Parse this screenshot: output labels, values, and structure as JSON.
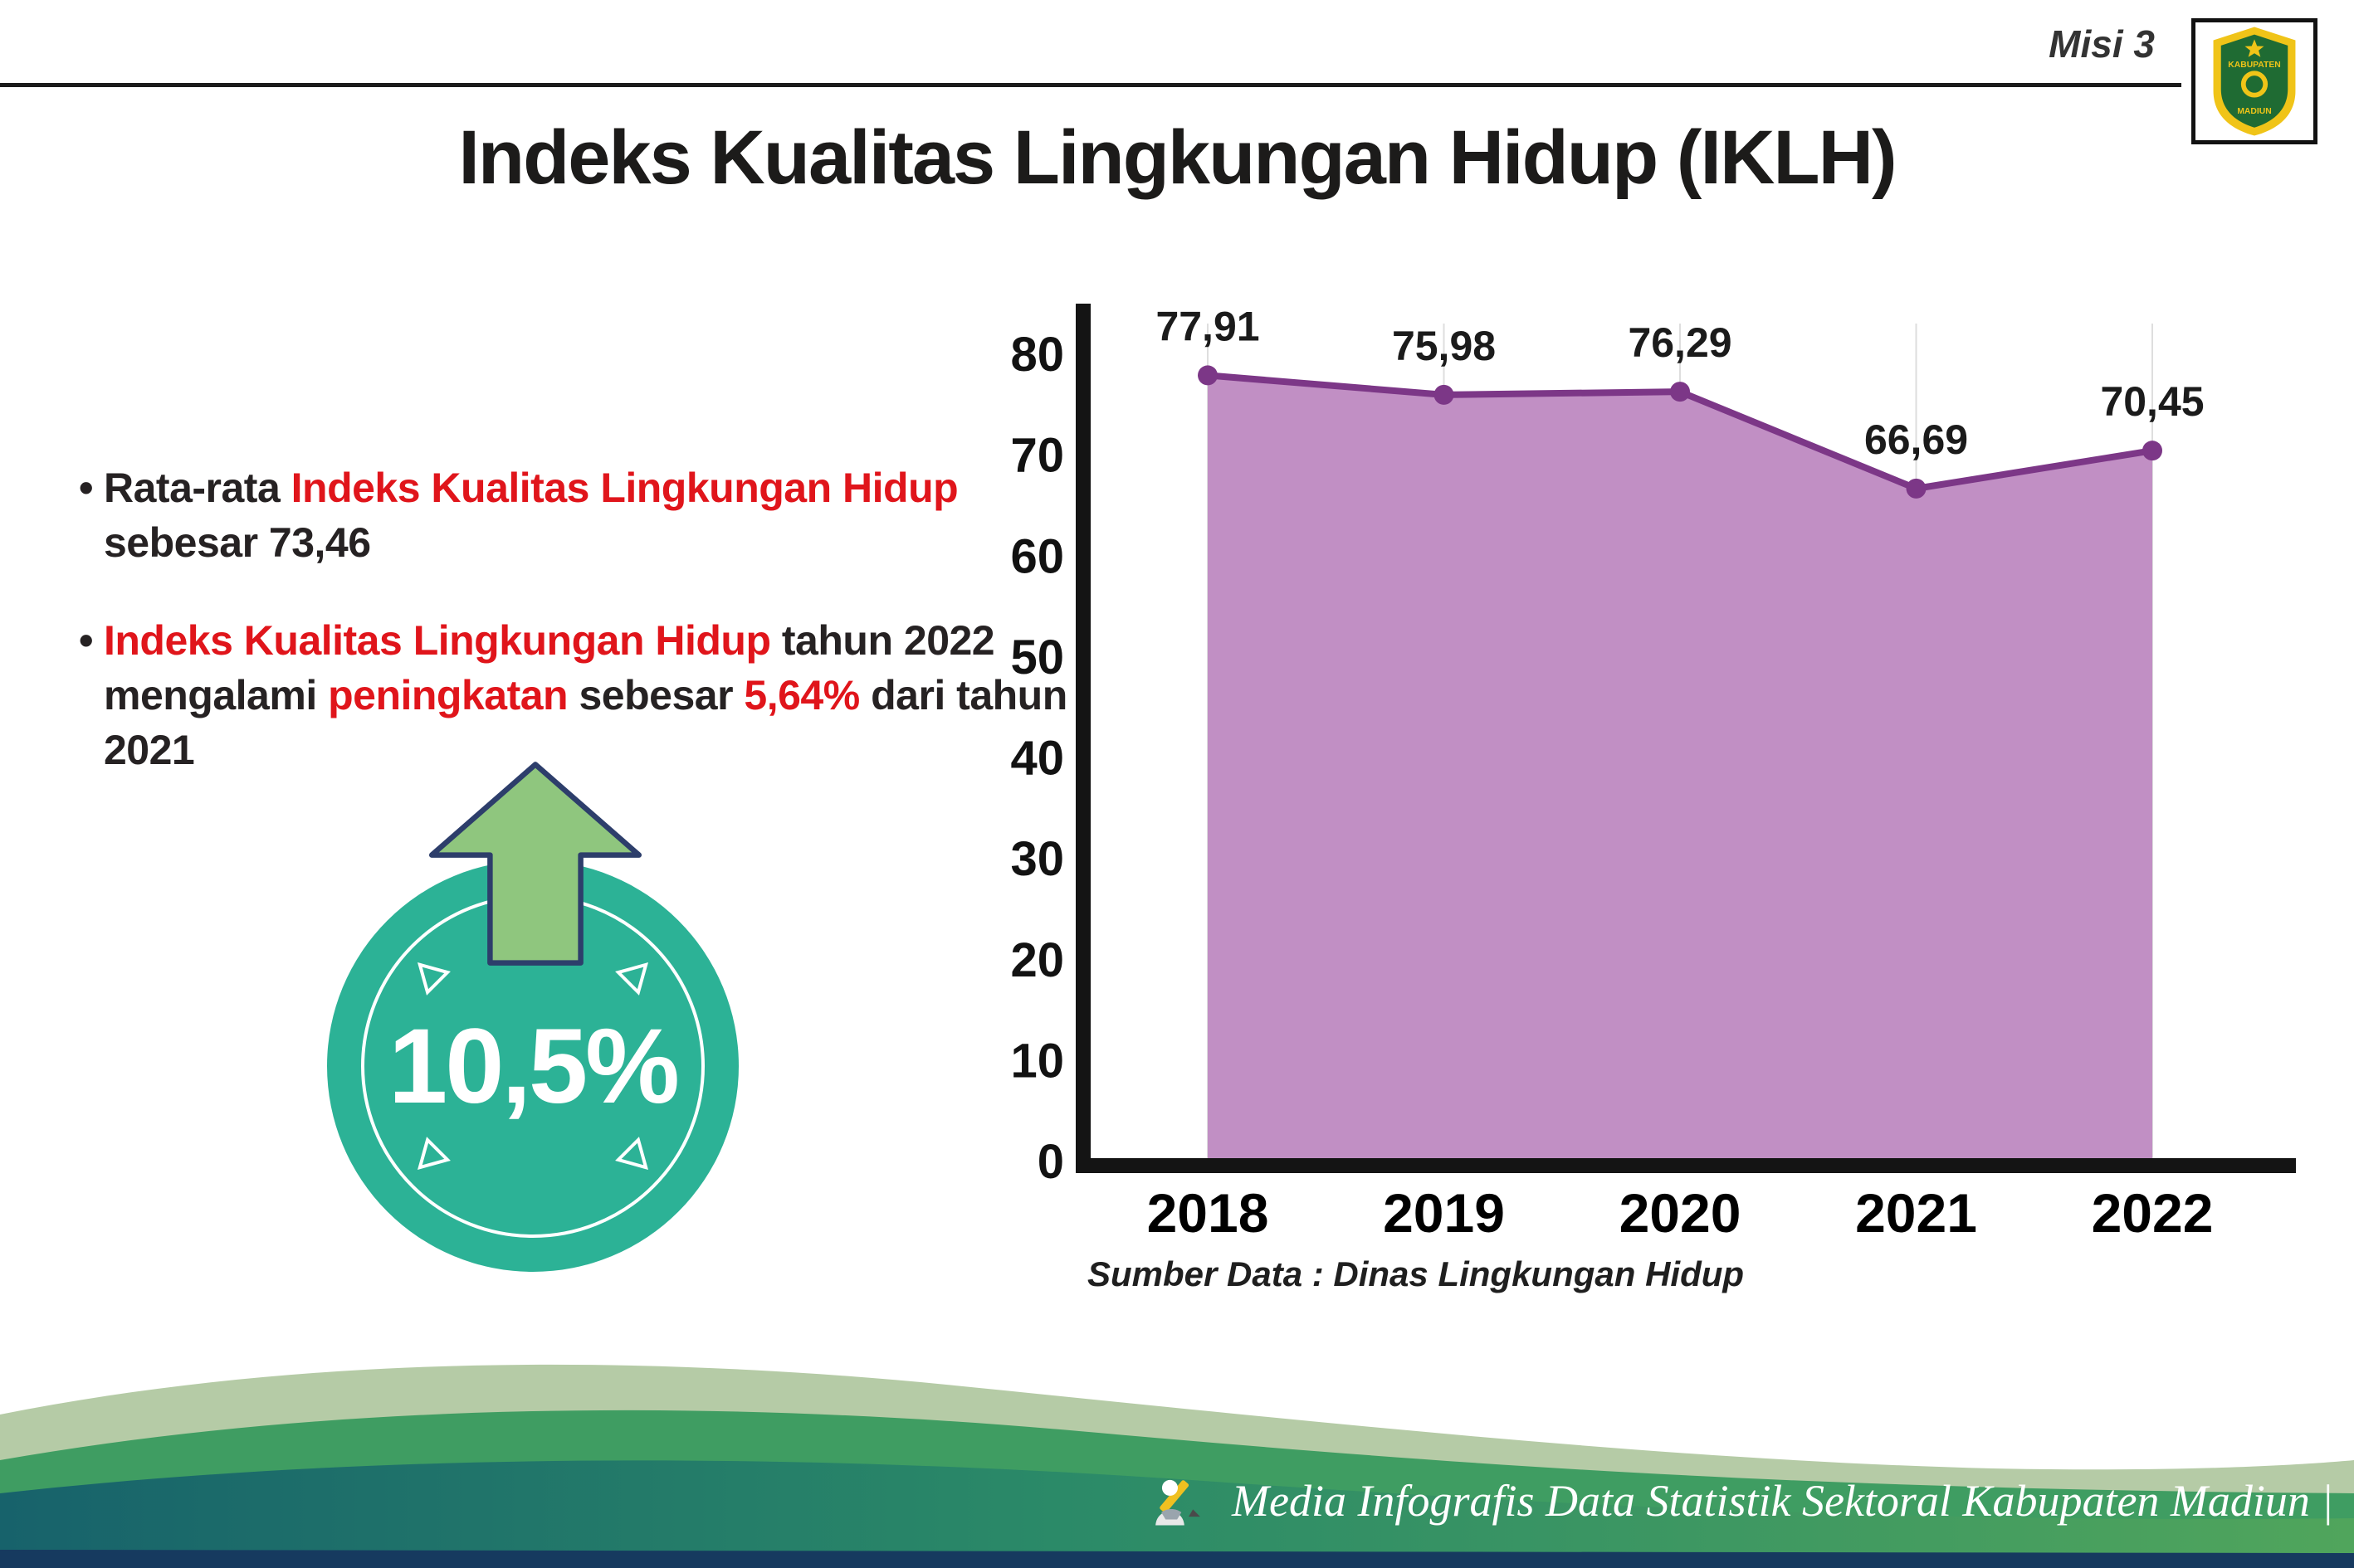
{
  "page": {
    "misi_label": "Misi 3",
    "title": "Indeks Kualitas Lingkungan Hidup (IKLH)",
    "source_note": "Sumber Data : Dinas Lingkungan Hidup",
    "footer_caption": "Media Infografis Data Statistik Sektoral Kabupaten Madiun |"
  },
  "logo": {
    "top_text": "KABUPATEN",
    "bottom_text": "MADIUN"
  },
  "badge": {
    "value": "10,5%"
  },
  "bullets": [
    {
      "segments": [
        {
          "text": "Rata-rata ",
          "color": "dark"
        },
        {
          "text": "Indeks Kualitas Lingkungan Hidup",
          "color": "red"
        },
        {
          "text": " sebesar 73,46",
          "color": "dark"
        }
      ]
    },
    {
      "segments": [
        {
          "text": "Indeks Kualitas Lingkungan Hidup",
          "color": "red"
        },
        {
          "text": " tahun 2022 mengalami ",
          "color": "dark"
        },
        {
          "text": "peningkatan",
          "color": "red"
        },
        {
          "text": " sebesar ",
          "color": "dark"
        },
        {
          "text": "5,64%",
          "color": "red"
        },
        {
          "text": " dari tahun 2021",
          "color": "dark"
        }
      ]
    }
  ],
  "colors": {
    "accent_red": "#e0151b",
    "badge_teal": "#2cb296",
    "arrow_green": "#8fc67e",
    "arrow_outline": "#2d3e6b",
    "area_fill": "#c18fc4",
    "line_purple": "#7c3787",
    "axis_black": "#141414",
    "wave_sage": "#b5cba6",
    "wave_green": "#3f9d62",
    "wave_teal": "#17626b",
    "wave_navy": "#163a5f"
  },
  "chart_data": {
    "type": "area",
    "categories": [
      "2018",
      "2019",
      "2020",
      "2021",
      "2022"
    ],
    "values": [
      77.91,
      75.98,
      76.29,
      66.69,
      70.45
    ],
    "value_labels": [
      "77,91",
      "75,98",
      "76,29",
      "66,69",
      "70,45"
    ],
    "title": "",
    "xlabel": "",
    "ylabel": "",
    "ylim": [
      0,
      80
    ],
    "yticks": [
      0,
      10,
      20,
      30,
      40,
      50,
      60,
      70,
      80
    ],
    "grid": "vertical-light",
    "legend": "none"
  }
}
